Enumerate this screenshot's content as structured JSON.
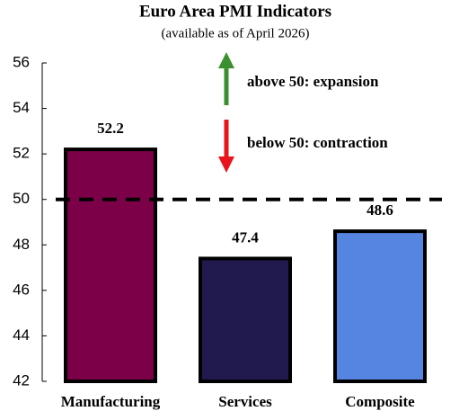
{
  "chart_data": {
    "type": "bar",
    "title": "Euro Area PMI Indicators",
    "subtitle": "(available as of April 2026)",
    "categories": [
      "Manufacturing",
      "Services",
      "Composite"
    ],
    "values": [
      52.2,
      47.4,
      48.6
    ],
    "colors": [
      "#7b0047",
      "#211a4f",
      "#5585e0"
    ],
    "ylim": [
      42,
      56
    ],
    "yticks": [
      42,
      44,
      46,
      48,
      50,
      52,
      54,
      56
    ],
    "reference_line": 50,
    "annotations": [
      {
        "text": "above 50: expansion",
        "color": "#3a8f2e",
        "direction": "up"
      },
      {
        "text": "below 50: contraction",
        "color": "#e8141b",
        "direction": "down"
      }
    ]
  }
}
